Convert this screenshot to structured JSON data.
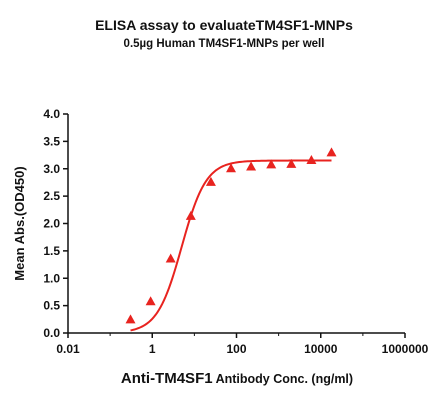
{
  "chart_data": {
    "type": "scatter",
    "title": "ELISA assay to evaluateTM4SF1-MNPs",
    "subtitle": "0.5µg Human TM4SF1-MNPs per well",
    "xlabel_main": "Anti-TM4SF1",
    "xlabel_rest": " Antibody Conc. (ng/ml)",
    "ylabel": "Mean Abs.(OD450)",
    "x_scale": "log",
    "xlim": [
      0.01,
      1000000
    ],
    "ylim": [
      0,
      4
    ],
    "x_ticks": [
      0.01,
      1,
      100,
      10000,
      1000000
    ],
    "x_tick_labels": [
      "0.01",
      "1",
      "100",
      "10000",
      "1000000"
    ],
    "y_ticks": [
      0,
      0.5,
      1,
      1.5,
      2,
      2.5,
      3,
      3.5,
      4
    ],
    "y_tick_labels": [
      "0.0",
      "0.5",
      "1.0",
      "1.5",
      "2.0",
      "2.5",
      "3.0",
      "3.5",
      "4.0"
    ],
    "grid": false,
    "color": "#e8231f",
    "series": [
      {
        "marker": "triangle",
        "points": [
          {
            "x": 0.305,
            "y": 0.25
          },
          {
            "x": 0.915,
            "y": 0.58
          },
          {
            "x": 2.74,
            "y": 1.36
          },
          {
            "x": 8.23,
            "y": 2.14
          },
          {
            "x": 24.7,
            "y": 2.76
          },
          {
            "x": 74.1,
            "y": 3.01
          },
          {
            "x": 222,
            "y": 3.04
          },
          {
            "x": 667,
            "y": 3.08
          },
          {
            "x": 2000,
            "y": 3.09
          },
          {
            "x": 6000,
            "y": 3.16
          },
          {
            "x": 18000,
            "y": 3.3
          }
        ]
      }
    ],
    "fit": {
      "bottom": 0.0,
      "top": 3.15,
      "ec50": 5.0,
      "hill": 1.5
    }
  }
}
